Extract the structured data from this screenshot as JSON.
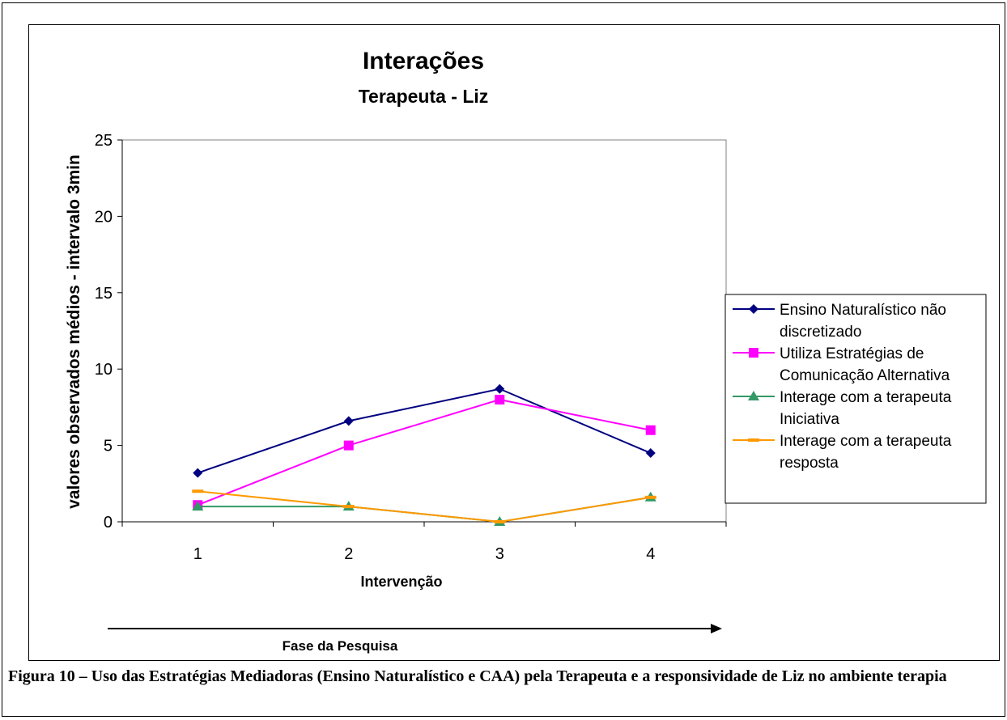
{
  "chart_data": {
    "type": "line",
    "title": "Interações",
    "subtitle": "Terapeuta - Liz",
    "xlabel": "Intervenção",
    "ylabel": "valores observados médios - intervalo 3min",
    "categories": [
      "1",
      "2",
      "3",
      "4"
    ],
    "ylim": [
      0,
      25
    ],
    "yticks": [
      0,
      5,
      10,
      15,
      20,
      25
    ],
    "grid": false,
    "legend_placement": "right",
    "phase_label": "Fase da Pesquisa",
    "series": [
      {
        "name_lines": [
          "Ensino Naturalístico não",
          "discretizado"
        ],
        "values": [
          3.2,
          6.6,
          8.7,
          4.5
        ],
        "color": "#000080",
        "marker": "diamond"
      },
      {
        "name_lines": [
          "Utiliza Estratégias de",
          "Comunicação Alternativa"
        ],
        "values": [
          1.1,
          5.0,
          8.0,
          6.0
        ],
        "color": "#ff00ff",
        "marker": "square"
      },
      {
        "name_lines": [
          "Interage com a terapeuta",
          "Iniciativa"
        ],
        "values": [
          1.0,
          1.0,
          0.0,
          1.6
        ],
        "color": "#339966",
        "marker": "triangle"
      },
      {
        "name_lines": [
          "Interage com a terapeuta",
          "resposta"
        ],
        "values": [
          2.0,
          1.0,
          0.0,
          1.6
        ],
        "color": "#ff9900",
        "marker": "dash"
      }
    ]
  },
  "caption": "Figura 10 – Uso das Estratégias Mediadoras (Ensino Naturalístico e CAA) pela Terapeuta e a responsividade de Liz no ambiente terapia"
}
